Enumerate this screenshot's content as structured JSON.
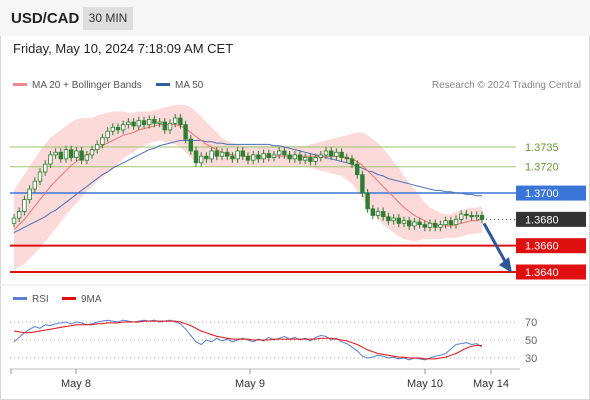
{
  "header": {
    "pair": "USD/CAD",
    "timeframe": "30 MIN"
  },
  "timestamp": "Friday, May 10, 2024 7:18:09 AM CET",
  "legend": [
    {
      "label": "MA 20 + Bollinger Bands",
      "color": "#f08a8a"
    },
    {
      "label": "MA 50",
      "color": "#2f5fa0"
    }
  ],
  "credit": "Research © 2024 Trading Central",
  "colors": {
    "candle": "#2e7d32",
    "ma20": "#f07070",
    "ma50": "#4a6fb0",
    "band": "#fbd4d4",
    "green_line": "#9cc46e",
    "blue_line": "#3a76d8",
    "red_line": "#e01010",
    "arrow": "#2b5797",
    "rsi": "#5a7fd6",
    "rsi_ma": "#e01010"
  },
  "chart_data": [
    {
      "type": "candlestick",
      "title": "USD/CAD 30 MIN",
      "price_range": [
        1.3634,
        1.3793
      ],
      "levels": [
        {
          "value": 1.3735,
          "label": "1.3735",
          "kind": "resistance-green"
        },
        {
          "value": 1.372,
          "label": "1.3720",
          "kind": "resistance-green"
        },
        {
          "value": 1.37,
          "label": "1.3700",
          "kind": "pivot-blue"
        },
        {
          "value": 1.368,
          "label": "1.3680",
          "kind": "last-price"
        },
        {
          "value": 1.366,
          "label": "1.3660",
          "kind": "support-red"
        },
        {
          "value": 1.364,
          "label": "1.3640",
          "kind": "support-red"
        }
      ],
      "close": [
        1.3681,
        1.3686,
        1.3695,
        1.3703,
        1.3709,
        1.3716,
        1.3722,
        1.3729,
        1.3731,
        1.3726,
        1.3733,
        1.3727,
        1.3732,
        1.3725,
        1.3729,
        1.3733,
        1.3737,
        1.3742,
        1.3747,
        1.375,
        1.3748,
        1.3752,
        1.3754,
        1.3751,
        1.3755,
        1.3752,
        1.3756,
        1.3753,
        1.3754,
        1.3748,
        1.3753,
        1.3757,
        1.3752,
        1.3741,
        1.3732,
        1.3723,
        1.3728,
        1.3726,
        1.3732,
        1.3728,
        1.3731,
        1.3728,
        1.3726,
        1.3732,
        1.3728,
        1.3725,
        1.3729,
        1.3726,
        1.373,
        1.3727,
        1.3729,
        1.3732,
        1.3729,
        1.3726,
        1.3729,
        1.3725,
        1.3727,
        1.3724,
        1.3727,
        1.3729,
        1.3732,
        1.3728,
        1.3731,
        1.3727,
        1.3726,
        1.3722,
        1.3714,
        1.37,
        1.3688,
        1.3683,
        1.3686,
        1.3682,
        1.3679,
        1.3681,
        1.3677,
        1.3679,
        1.3675,
        1.3678,
        1.3676,
        1.3674,
        1.3677,
        1.3674,
        1.3676,
        1.3679,
        1.3676,
        1.368,
        1.3684,
        1.3683,
        1.3682,
        1.3683,
        1.368
      ],
      "ma20": [
        1.3672,
        1.3676,
        1.368,
        1.3685,
        1.369,
        1.3695,
        1.37,
        1.3705,
        1.3709,
        1.3713,
        1.3717,
        1.3721,
        1.3724,
        1.3727,
        1.3729,
        1.3731,
        1.3734,
        1.3736,
        1.3738,
        1.374,
        1.3742,
        1.3744,
        1.3745,
        1.3746,
        1.3748,
        1.3749,
        1.375,
        1.3751,
        1.3752,
        1.3752,
        1.3752,
        1.3752,
        1.3751,
        1.3749,
        1.3746,
        1.3743,
        1.374,
        1.3737,
        1.3735,
        1.3733,
        1.3731,
        1.373,
        1.3729,
        1.3729,
        1.3728,
        1.3728,
        1.3728,
        1.3728,
        1.3728,
        1.3728,
        1.3728,
        1.3728,
        1.3728,
        1.3728,
        1.3728,
        1.3728,
        1.3728,
        1.3728,
        1.3728,
        1.3728,
        1.3728,
        1.3728,
        1.3728,
        1.3728,
        1.3727,
        1.3726,
        1.3724,
        1.3721,
        1.3717,
        1.3713,
        1.3709,
        1.3705,
        1.3701,
        1.3697,
        1.3693,
        1.3689,
        1.3686,
        1.3683,
        1.3681,
        1.3679,
        1.3677,
        1.3676,
        1.3675,
        1.3675,
        1.3675,
        1.3676,
        1.3677,
        1.3678,
        1.3679,
        1.3679,
        1.368
      ],
      "ma50": [
        1.367,
        1.3672,
        1.3674,
        1.3676,
        1.3678,
        1.368,
        1.3682,
        1.3685,
        1.3687,
        1.369,
        1.3693,
        1.3696,
        1.3699,
        1.3702,
        1.3705,
        1.3708,
        1.3711,
        1.3714,
        1.3716,
        1.3719,
        1.3721,
        1.3723,
        1.3725,
        1.3727,
        1.3729,
        1.3731,
        1.3733,
        1.3734,
        1.3736,
        1.3737,
        1.3738,
        1.3739,
        1.374,
        1.374,
        1.374,
        1.374,
        1.374,
        1.3739,
        1.3739,
        1.3738,
        1.3738,
        1.3737,
        1.3737,
        1.3737,
        1.3737,
        1.3737,
        1.3737,
        1.3737,
        1.3737,
        1.3737,
        1.3736,
        1.3736,
        1.3735,
        1.3734,
        1.3733,
        1.3732,
        1.3731,
        1.373,
        1.3729,
        1.3728,
        1.3727,
        1.3726,
        1.3725,
        1.3724,
        1.3723,
        1.3722,
        1.372,
        1.3719,
        1.3717,
        1.3716,
        1.3714,
        1.3713,
        1.3711,
        1.371,
        1.3709,
        1.3708,
        1.3707,
        1.3706,
        1.3705,
        1.3704,
        1.3703,
        1.3702,
        1.3702,
        1.3701,
        1.3701,
        1.37,
        1.37,
        1.3699,
        1.3699,
        1.3698,
        1.3698
      ],
      "bb_width": [
        0.003,
        0.0032,
        0.0034,
        0.0035,
        0.0036,
        0.0037,
        0.0037,
        0.0037,
        0.0036,
        0.0035,
        0.0034,
        0.0033,
        0.0032,
        0.003,
        0.0028,
        0.0026,
        0.0025,
        0.0024,
        0.0023,
        0.0022,
        0.002,
        0.0018,
        0.0016,
        0.0015,
        0.0014,
        0.0013,
        0.0012,
        0.0012,
        0.0012,
        0.0013,
        0.0014,
        0.0015,
        0.0016,
        0.0018,
        0.0019,
        0.0019,
        0.0018,
        0.0017,
        0.0015,
        0.0013,
        0.0011,
        0.001,
        0.0009,
        0.0008,
        0.0008,
        0.0008,
        0.0008,
        0.0008,
        0.0008,
        0.0008,
        0.0008,
        0.0008,
        0.0008,
        0.0008,
        0.0008,
        0.0008,
        0.0008,
        0.0009,
        0.001,
        0.0011,
        0.0012,
        0.0013,
        0.0014,
        0.0015,
        0.0017,
        0.0019,
        0.0022,
        0.0025,
        0.0027,
        0.0028,
        0.0029,
        0.0029,
        0.0028,
        0.0027,
        0.0026,
        0.0024,
        0.0022,
        0.002,
        0.0017,
        0.0014,
        0.0012,
        0.0011,
        0.001,
        0.0009,
        0.0009,
        0.001,
        0.001,
        0.001,
        0.001,
        0.001,
        0.001
      ],
      "projection": {
        "from": 1.368,
        "to": 1.364
      }
    },
    {
      "type": "line",
      "title": "RSI",
      "ylim": [
        20,
        80
      ],
      "yticks": [
        "70",
        "50",
        "30"
      ],
      "series": [
        {
          "name": "RSI",
          "values": [
            48,
            53,
            58,
            62,
            65,
            63,
            67,
            66,
            68,
            69,
            70,
            68,
            70,
            69,
            67,
            68,
            70,
            71,
            72,
            71,
            70,
            72,
            71,
            70,
            71,
            72,
            71,
            72,
            70,
            71,
            72,
            70,
            68,
            62,
            55,
            48,
            45,
            50,
            48,
            52,
            49,
            51,
            48,
            50,
            52,
            50,
            48,
            51,
            49,
            53,
            50,
            52,
            54,
            51,
            53,
            50,
            52,
            49,
            53,
            55,
            54,
            50,
            52,
            48,
            46,
            42,
            38,
            32,
            30,
            31,
            33,
            32,
            30,
            31,
            29,
            30,
            28,
            30,
            29,
            28,
            30,
            32,
            33,
            35,
            40,
            45,
            46,
            47,
            45,
            46,
            42
          ]
        },
        {
          "name": "9MA",
          "values": [
            60,
            59,
            58,
            58,
            59,
            60,
            61,
            62,
            63,
            64,
            65,
            66,
            67,
            67,
            67,
            67,
            68,
            68,
            69,
            69,
            69,
            70,
            70,
            70,
            70,
            71,
            71,
            71,
            71,
            71,
            71,
            71,
            70,
            68,
            66,
            63,
            60,
            58,
            56,
            54,
            53,
            52,
            51,
            51,
            51,
            51,
            50,
            50,
            50,
            50,
            51,
            51,
            51,
            51,
            51,
            51,
            51,
            51,
            51,
            52,
            52,
            52,
            51,
            50,
            49,
            47,
            45,
            42,
            39,
            37,
            35,
            34,
            33,
            32,
            31,
            31,
            30,
            30,
            30,
            29,
            29,
            29,
            30,
            31,
            33,
            35,
            38,
            41,
            43,
            44,
            44
          ]
        }
      ]
    }
  ],
  "x_axis": {
    "labels": [
      "May 8",
      "May 9",
      "May 10",
      "May 14"
    ]
  }
}
